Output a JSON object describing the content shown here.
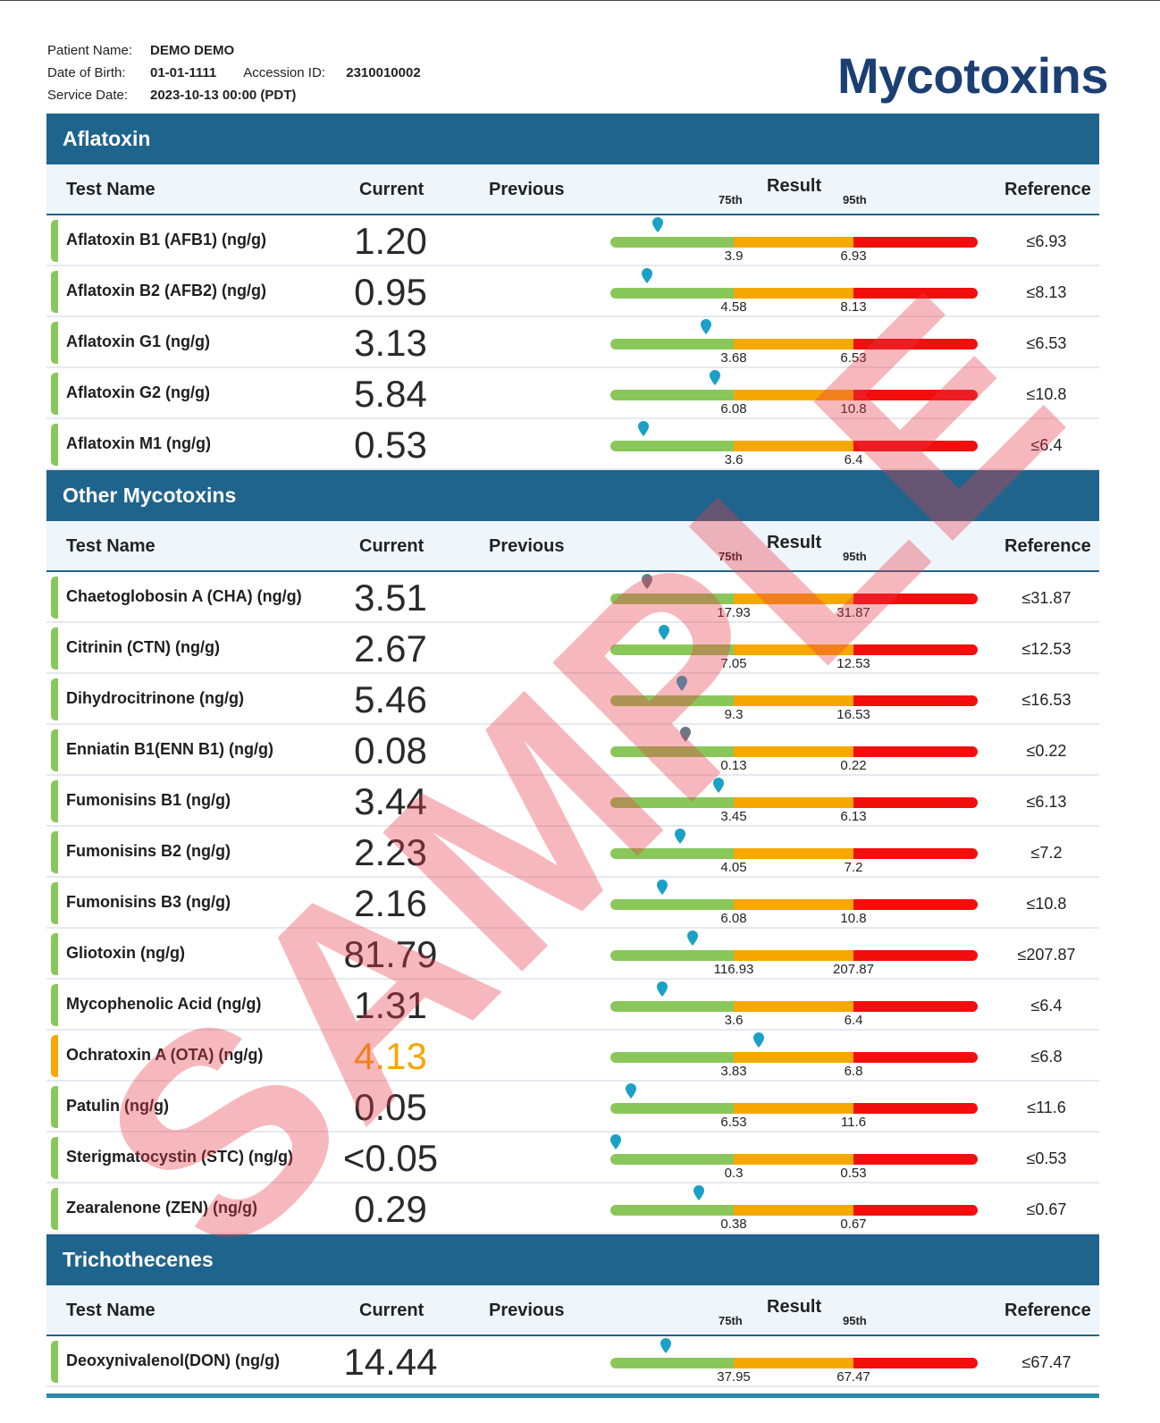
{
  "header": {
    "patient_name_label": "Patient Name:",
    "patient_name": "DEMO DEMO",
    "dob_label": "Date of Birth:",
    "dob": "01-01-1111",
    "accession_label": "Accession ID:",
    "accession": "2310010002",
    "service_date_label": "Service Date:",
    "service_date": "2023-10-13 00:00 (PDT)",
    "title": "Mycotoxins"
  },
  "columns": {
    "name": "Test Name",
    "current": "Current",
    "previous": "Previous",
    "result": "Result",
    "p75": "75th",
    "p95": "95th",
    "reference": "Reference"
  },
  "colors": {
    "section": "#1f648d",
    "green": "#8ac75b",
    "orange": "#f7a800",
    "red": "#f30e0e",
    "pin": "#1aa1c5",
    "pin_muted": "#6d7a86"
  },
  "watermark": "SAMPLE",
  "sections": [
    {
      "title": "Aflatoxin",
      "rows": [
        {
          "name": "Aflatoxin B1 (AFB1) (ng/g)",
          "current": "1.20",
          "p75": "3.9",
          "p95": "6.93",
          "reference": "≤6.93",
          "flag": "normal",
          "marker": 0.13
        },
        {
          "name": "Aflatoxin B2 (AFB2) (ng/g)",
          "current": "0.95",
          "p75": "4.58",
          "p95": "8.13",
          "reference": "≤8.13",
          "flag": "normal",
          "marker": 0.1
        },
        {
          "name": "Aflatoxin G1 (ng/g)",
          "current": "3.13",
          "p75": "3.68",
          "p95": "6.53",
          "reference": "≤6.53",
          "flag": "normal",
          "marker": 0.26
        },
        {
          "name": "Aflatoxin G2 (ng/g)",
          "current": "5.84",
          "p75": "6.08",
          "p95": "10.8",
          "reference": "≤10.8",
          "flag": "normal",
          "marker": 0.285
        },
        {
          "name": "Aflatoxin M1 (ng/g)",
          "current": "0.53",
          "p75": "3.6",
          "p95": "6.4",
          "reference": "≤6.4",
          "flag": "normal",
          "marker": 0.09
        }
      ]
    },
    {
      "title": "Other Mycotoxins",
      "rows": [
        {
          "name": "Chaetoglobosin A (CHA) (ng/g)",
          "current": "3.51",
          "p75": "17.93",
          "p95": "31.87",
          "reference": "≤31.87",
          "flag": "normal",
          "marker": 0.1,
          "muted": true
        },
        {
          "name": "Citrinin (CTN) (ng/g)",
          "current": "2.67",
          "p75": "7.05",
          "p95": "12.53",
          "reference": "≤12.53",
          "flag": "normal",
          "marker": 0.145
        },
        {
          "name": "Dihydrocitrinone (ng/g)",
          "current": "5.46",
          "p75": "9.3",
          "p95": "16.53",
          "reference": "≤16.53",
          "flag": "normal",
          "marker": 0.195
        },
        {
          "name": "Enniatin B1(ENN B1) (ng/g)",
          "current": "0.08",
          "p75": "0.13",
          "p95": "0.22",
          "reference": "≤0.22",
          "flag": "normal",
          "marker": 0.205,
          "muted": true
        },
        {
          "name": "Fumonisins B1 (ng/g)",
          "current": "3.44",
          "p75": "3.45",
          "p95": "6.13",
          "reference": "≤6.13",
          "flag": "normal",
          "marker": 0.295
        },
        {
          "name": "Fumonisins B2 (ng/g)",
          "current": "2.23",
          "p75": "4.05",
          "p95": "7.2",
          "reference": "≤7.2",
          "flag": "normal",
          "marker": 0.19
        },
        {
          "name": "Fumonisins B3 (ng/g)",
          "current": "2.16",
          "p75": "6.08",
          "p95": "10.8",
          "reference": "≤10.8",
          "flag": "normal",
          "marker": 0.14
        },
        {
          "name": "Gliotoxin (ng/g)",
          "current": "81.79",
          "p75": "116.93",
          "p95": "207.87",
          "reference": "≤207.87",
          "flag": "normal",
          "marker": 0.225
        },
        {
          "name": "Mycophenolic Acid (ng/g)",
          "current": "1.31",
          "p75": "3.6",
          "p95": "6.4",
          "reference": "≤6.4",
          "flag": "normal",
          "marker": 0.14
        },
        {
          "name": "Ochratoxin A (OTA) (ng/g)",
          "current": "4.13",
          "p75": "3.83",
          "p95": "6.8",
          "reference": "≤6.8",
          "flag": "warn",
          "marker": 0.405
        },
        {
          "name": "Patulin (ng/g)",
          "current": "0.05",
          "p75": "6.53",
          "p95": "11.6",
          "reference": "≤11.6",
          "flag": "normal",
          "marker": 0.055
        },
        {
          "name": "Sterigmatocystin (STC) (ng/g)",
          "current": "<0.05",
          "p75": "0.3",
          "p95": "0.53",
          "reference": "≤0.53",
          "flag": "normal",
          "marker": 0.015
        },
        {
          "name": "Zearalenone (ZEN) (ng/g)",
          "current": "0.29",
          "p75": "0.38",
          "p95": "0.67",
          "reference": "≤0.67",
          "flag": "normal",
          "marker": 0.24
        }
      ]
    },
    {
      "title": "Trichothecenes",
      "rows": [
        {
          "name": "Deoxynivalenol(DON) (ng/g)",
          "current": "14.44",
          "p75": "37.95",
          "p95": "67.47",
          "reference": "≤67.47",
          "flag": "normal",
          "marker": 0.15
        }
      ]
    }
  ]
}
